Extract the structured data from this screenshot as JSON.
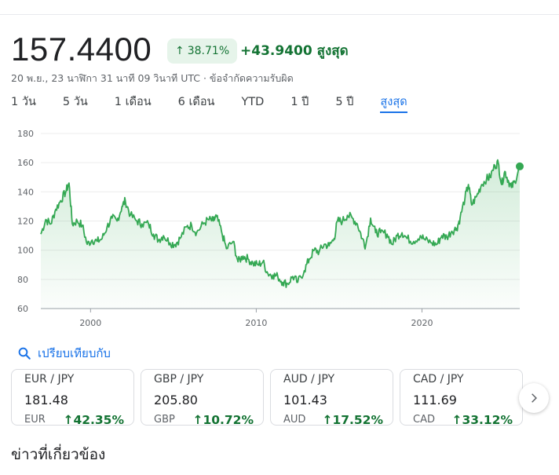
{
  "quote": {
    "price": "157.4400",
    "change_percent": "38.71%",
    "change_abs": "+43.9400",
    "range_label": "สูงสุด",
    "timestamp": "20 พ.ย., 23 นาฬิกา 31 นาที 09 วินาที UTC · ข้อจำกัดความรับผิด"
  },
  "ranges": [
    {
      "label": "1 วัน",
      "active": false
    },
    {
      "label": "5 วัน",
      "active": false
    },
    {
      "label": "1 เดือน",
      "active": false
    },
    {
      "label": "6 เดือน",
      "active": false
    },
    {
      "label": "YTD",
      "active": false
    },
    {
      "label": "1 ปี",
      "active": false
    },
    {
      "label": "5 ปี",
      "active": false
    },
    {
      "label": "สูงสุด",
      "active": true
    }
  ],
  "chart_data": {
    "type": "area",
    "x_ticks": [
      "2000",
      "2010",
      "2020"
    ],
    "y_ticks": [
      60,
      80,
      100,
      120,
      140,
      160,
      180
    ],
    "ylim": [
      60,
      180
    ],
    "xlim": [
      1997,
      2025.9
    ],
    "line_color": "#34a853",
    "grid": true,
    "series": [
      {
        "points": [
          [
            1997.0,
            111
          ],
          [
            1997.3,
            121
          ],
          [
            1997.6,
            118
          ],
          [
            1997.9,
            128
          ],
          [
            1998.2,
            134
          ],
          [
            1998.5,
            140
          ],
          [
            1998.7,
            146
          ],
          [
            1998.9,
            118
          ],
          [
            1999.2,
            120
          ],
          [
            1999.5,
            117
          ],
          [
            1999.8,
            104
          ],
          [
            2000.1,
            107
          ],
          [
            2000.4,
            106
          ],
          [
            2000.7,
            108
          ],
          [
            2001.0,
            116
          ],
          [
            2001.3,
            122
          ],
          [
            2001.6,
            120
          ],
          [
            2001.9,
            130
          ],
          [
            2002.1,
            134
          ],
          [
            2002.4,
            124
          ],
          [
            2002.8,
            120
          ],
          [
            2003.1,
            118
          ],
          [
            2003.5,
            118
          ],
          [
            2003.8,
            111
          ],
          [
            2004.1,
            107
          ],
          [
            2004.4,
            110
          ],
          [
            2004.8,
            105
          ],
          [
            2005.1,
            104
          ],
          [
            2005.4,
            108
          ],
          [
            2005.8,
            116
          ],
          [
            2006.1,
            117
          ],
          [
            2006.4,
            112
          ],
          [
            2006.8,
            118
          ],
          [
            2007.1,
            121
          ],
          [
            2007.4,
            120
          ],
          [
            2007.6,
            123
          ],
          [
            2007.9,
            113
          ],
          [
            2008.2,
            101
          ],
          [
            2008.6,
            106
          ],
          [
            2008.9,
            92
          ],
          [
            2009.2,
            96
          ],
          [
            2009.5,
            94
          ],
          [
            2009.8,
            91
          ],
          [
            2010.1,
            90
          ],
          [
            2010.4,
            92
          ],
          [
            2010.7,
            84
          ],
          [
            2011.0,
            83
          ],
          [
            2011.3,
            82
          ],
          [
            2011.6,
            78
          ],
          [
            2011.9,
            77
          ],
          [
            2012.2,
            82
          ],
          [
            2012.5,
            78
          ],
          [
            2012.9,
            86
          ],
          [
            2013.2,
            94
          ],
          [
            2013.5,
            100
          ],
          [
            2013.8,
            99
          ],
          [
            2014.1,
            104
          ],
          [
            2014.4,
            103
          ],
          [
            2014.7,
            108
          ],
          [
            2014.9,
            120
          ],
          [
            2015.2,
            120
          ],
          [
            2015.5,
            124
          ],
          [
            2015.8,
            122
          ],
          [
            2016.1,
            118
          ],
          [
            2016.4,
            108
          ],
          [
            2016.6,
            103
          ],
          [
            2016.9,
            122
          ],
          [
            2017.2,
            112
          ],
          [
            2017.5,
            112
          ],
          [
            2017.9,
            111
          ],
          [
            2018.2,
            104
          ],
          [
            2018.5,
            110
          ],
          [
            2018.8,
            112
          ],
          [
            2019.1,
            108
          ],
          [
            2019.5,
            106
          ],
          [
            2019.9,
            110
          ],
          [
            2020.2,
            107
          ],
          [
            2020.6,
            105
          ],
          [
            2020.9,
            104
          ],
          [
            2021.2,
            110
          ],
          [
            2021.5,
            109
          ],
          [
            2021.8,
            113
          ],
          [
            2022.1,
            115
          ],
          [
            2022.3,
            122
          ],
          [
            2022.6,
            136
          ],
          [
            2022.8,
            145
          ],
          [
            2023.0,
            131
          ],
          [
            2023.3,
            137
          ],
          [
            2023.6,
            145
          ],
          [
            2023.9,
            149
          ],
          [
            2024.1,
            150
          ],
          [
            2024.4,
            158
          ],
          [
            2024.6,
            160
          ],
          [
            2024.8,
            145
          ],
          [
            2025.0,
            154
          ],
          [
            2025.2,
            148
          ],
          [
            2025.4,
            143
          ],
          [
            2025.6,
            147
          ],
          [
            2025.9,
            157.44
          ]
        ]
      }
    ]
  },
  "compare": {
    "label": "เปรียบเทียบกับ"
  },
  "cards": [
    {
      "pair": "EUR / JPY",
      "value": "181.48",
      "currency": "EUR",
      "change": "42.35%"
    },
    {
      "pair": "GBP / JPY",
      "value": "205.80",
      "currency": "GBP",
      "change": "10.72%"
    },
    {
      "pair": "AUD / JPY",
      "value": "101.43",
      "currency": "AUD",
      "change": "17.52%"
    },
    {
      "pair": "CAD / JPY",
      "value": "111.69",
      "currency": "CAD",
      "change": "33.12%"
    }
  ],
  "section": {
    "title": "ข่าวที่เกี่ยวข้อง"
  },
  "icons": {
    "up_arrow": "arrow-up-icon",
    "search": "search-icon",
    "next": "chevron-right-icon"
  }
}
